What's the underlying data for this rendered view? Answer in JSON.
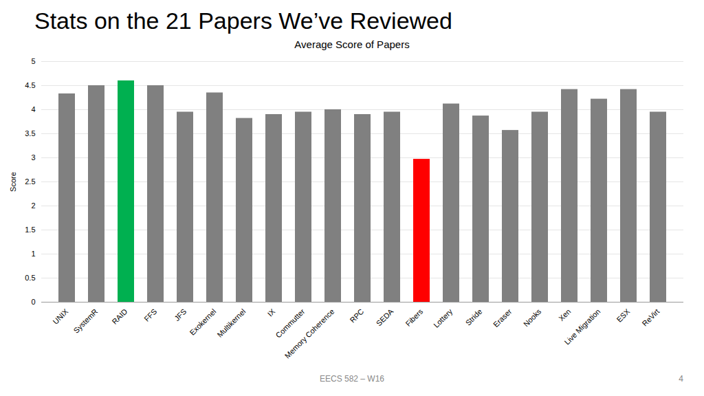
{
  "chart_data": {
    "type": "bar",
    "title": "Stats on the 21 Papers We’ve Reviewed",
    "subtitle": "Average Score of Papers",
    "annotations": [
      "EECS 582 – W16",
      "4"
    ],
    "ylabel": "Score",
    "categories": [
      "UNIX",
      "SystemR",
      "RAID",
      "FFS",
      "JFS",
      "Exokernel",
      "Multikernel",
      "IX",
      "Commutter",
      "Memory Coherence",
      "RPC",
      "SEDA",
      "Fibers",
      "Lottery",
      "Stride",
      "Eraser",
      "Nooks",
      "Xen",
      "Live Migration",
      "ESX",
      "ReVirt"
    ],
    "values": [
      4.33,
      4.5,
      4.6,
      4.5,
      3.95,
      4.35,
      3.82,
      3.9,
      3.95,
      4.0,
      3.9,
      3.95,
      2.97,
      4.12,
      3.87,
      3.57,
      3.95,
      4.42,
      4.22,
      4.42,
      3.95
    ],
    "colors": [
      "#808080",
      "#808080",
      "#00b050",
      "#808080",
      "#808080",
      "#808080",
      "#808080",
      "#808080",
      "#808080",
      "#808080",
      "#808080",
      "#808080",
      "#ff0000",
      "#808080",
      "#808080",
      "#808080",
      "#808080",
      "#808080",
      "#808080",
      "#808080",
      "#808080"
    ],
    "ylim": [
      0,
      5
    ],
    "yticks": [
      0,
      0.5,
      1,
      1.5,
      2,
      2.5,
      3,
      3.5,
      4,
      4.5,
      5
    ],
    "grid": true
  }
}
